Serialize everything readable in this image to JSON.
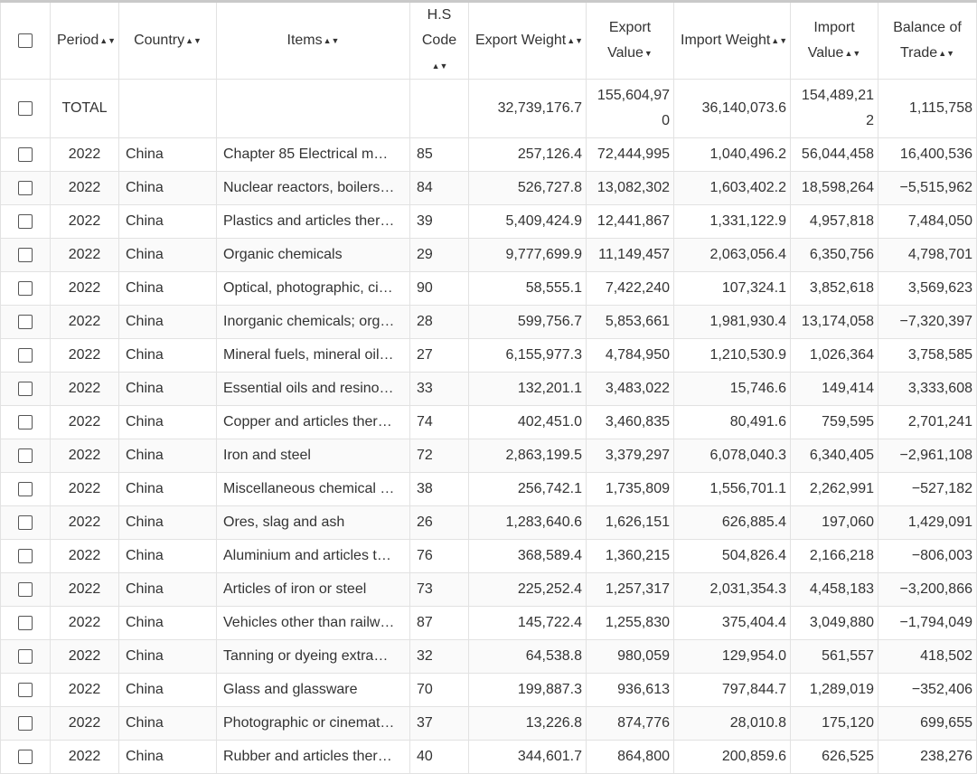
{
  "columns": [
    {
      "label": "Period",
      "sort": "both"
    },
    {
      "label": "Country",
      "sort": "both"
    },
    {
      "label": "Items",
      "sort": "both"
    },
    {
      "label": "H.S Code",
      "sort": "both"
    },
    {
      "label": "Export Weight",
      "sort": "both"
    },
    {
      "label": "Export Value",
      "sort": "desc"
    },
    {
      "label": "Import Weight",
      "sort": "both"
    },
    {
      "label": "Import Value",
      "sort": "both"
    },
    {
      "label": "Balance of Trade",
      "sort": "both"
    }
  ],
  "sort_icons": {
    "both": "▲▼",
    "desc": "▼"
  },
  "total": {
    "period": "TOTAL",
    "export_weight": "32,739,176.7",
    "export_value": "155,604,970",
    "import_weight": "36,140,073.6",
    "import_value": "154,489,212",
    "balance": "1,115,758"
  },
  "rows": [
    {
      "period": "2022",
      "country": "China",
      "item": "Chapter 85 Electrical m…",
      "hs": "85",
      "export_weight": "257,126.4",
      "export_value": "72,444,995",
      "import_weight": "1,040,496.2",
      "import_value": "56,044,458",
      "balance": "16,400,536"
    },
    {
      "period": "2022",
      "country": "China",
      "item": "Nuclear reactors, boilers…",
      "hs": "84",
      "export_weight": "526,727.8",
      "export_value": "13,082,302",
      "import_weight": "1,603,402.2",
      "import_value": "18,598,264",
      "balance": "−5,515,962"
    },
    {
      "period": "2022",
      "country": "China",
      "item": "Plastics and articles ther…",
      "hs": "39",
      "export_weight": "5,409,424.9",
      "export_value": "12,441,867",
      "import_weight": "1,331,122.9",
      "import_value": "4,957,818",
      "balance": "7,484,050"
    },
    {
      "period": "2022",
      "country": "China",
      "item": "Organic chemicals",
      "hs": "29",
      "export_weight": "9,777,699.9",
      "export_value": "11,149,457",
      "import_weight": "2,063,056.4",
      "import_value": "6,350,756",
      "balance": "4,798,701"
    },
    {
      "period": "2022",
      "country": "China",
      "item": "Optical, photographic, ci…",
      "hs": "90",
      "export_weight": "58,555.1",
      "export_value": "7,422,240",
      "import_weight": "107,324.1",
      "import_value": "3,852,618",
      "balance": "3,569,623"
    },
    {
      "period": "2022",
      "country": "China",
      "item": "Inorganic chemicals; org…",
      "hs": "28",
      "export_weight": "599,756.7",
      "export_value": "5,853,661",
      "import_weight": "1,981,930.4",
      "import_value": "13,174,058",
      "balance": "−7,320,397"
    },
    {
      "period": "2022",
      "country": "China",
      "item": "Mineral fuels, mineral oil…",
      "hs": "27",
      "export_weight": "6,155,977.3",
      "export_value": "4,784,950",
      "import_weight": "1,210,530.9",
      "import_value": "1,026,364",
      "balance": "3,758,585"
    },
    {
      "period": "2022",
      "country": "China",
      "item": "Essential oils and resino…",
      "hs": "33",
      "export_weight": "132,201.1",
      "export_value": "3,483,022",
      "import_weight": "15,746.6",
      "import_value": "149,414",
      "balance": "3,333,608"
    },
    {
      "period": "2022",
      "country": "China",
      "item": "Copper and articles ther…",
      "hs": "74",
      "export_weight": "402,451.0",
      "export_value": "3,460,835",
      "import_weight": "80,491.6",
      "import_value": "759,595",
      "balance": "2,701,241"
    },
    {
      "period": "2022",
      "country": "China",
      "item": "Iron and steel",
      "hs": "72",
      "export_weight": "2,863,199.5",
      "export_value": "3,379,297",
      "import_weight": "6,078,040.3",
      "import_value": "6,340,405",
      "balance": "−2,961,108"
    },
    {
      "period": "2022",
      "country": "China",
      "item": "Miscellaneous chemical …",
      "hs": "38",
      "export_weight": "256,742.1",
      "export_value": "1,735,809",
      "import_weight": "1,556,701.1",
      "import_value": "2,262,991",
      "balance": "−527,182"
    },
    {
      "period": "2022",
      "country": "China",
      "item": "Ores, slag and ash",
      "hs": "26",
      "export_weight": "1,283,640.6",
      "export_value": "1,626,151",
      "import_weight": "626,885.4",
      "import_value": "197,060",
      "balance": "1,429,091"
    },
    {
      "period": "2022",
      "country": "China",
      "item": "Aluminium and articles t…",
      "hs": "76",
      "export_weight": "368,589.4",
      "export_value": "1,360,215",
      "import_weight": "504,826.4",
      "import_value": "2,166,218",
      "balance": "−806,003"
    },
    {
      "period": "2022",
      "country": "China",
      "item": "Articles of iron or steel",
      "hs": "73",
      "export_weight": "225,252.4",
      "export_value": "1,257,317",
      "import_weight": "2,031,354.3",
      "import_value": "4,458,183",
      "balance": "−3,200,866"
    },
    {
      "period": "2022",
      "country": "China",
      "item": "Vehicles other than railw…",
      "hs": "87",
      "export_weight": "145,722.4",
      "export_value": "1,255,830",
      "import_weight": "375,404.4",
      "import_value": "3,049,880",
      "balance": "−1,794,049"
    },
    {
      "period": "2022",
      "country": "China",
      "item": "Tanning or dyeing extra…",
      "hs": "32",
      "export_weight": "64,538.8",
      "export_value": "980,059",
      "import_weight": "129,954.0",
      "import_value": "561,557",
      "balance": "418,502"
    },
    {
      "period": "2022",
      "country": "China",
      "item": "Glass and glassware",
      "hs": "70",
      "export_weight": "199,887.3",
      "export_value": "936,613",
      "import_weight": "797,844.7",
      "import_value": "1,289,019",
      "balance": "−352,406"
    },
    {
      "period": "2022",
      "country": "China",
      "item": "Photographic or cinemat…",
      "hs": "37",
      "export_weight": "13,226.8",
      "export_value": "874,776",
      "import_weight": "28,010.8",
      "import_value": "175,120",
      "balance": "699,655"
    },
    {
      "period": "2022",
      "country": "China",
      "item": "Rubber and articles ther…",
      "hs": "40",
      "export_weight": "344,601.7",
      "export_value": "864,800",
      "import_weight": "200,859.6",
      "import_value": "626,525",
      "balance": "238,276"
    }
  ]
}
